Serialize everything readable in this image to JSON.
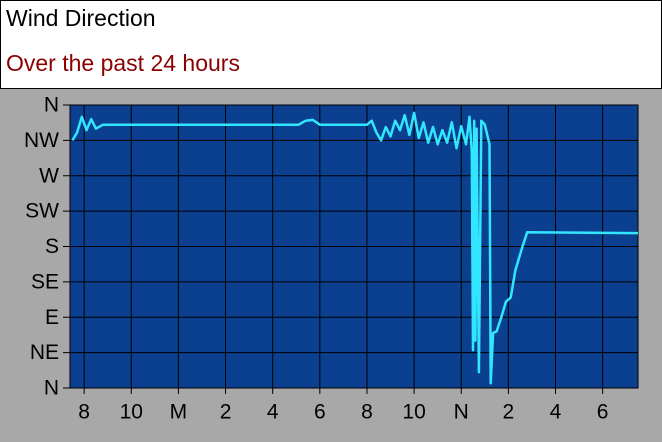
{
  "chart_data": {
    "type": "line",
    "title": "Wind Direction",
    "subtitle": "Over the past 24 hours",
    "color": "#33e6ff",
    "plot_color": "#0b3f8f",
    "grid": true,
    "xlim": [
      19.4,
      43.5
    ],
    "xticks": [
      {
        "value": 20,
        "label": "8"
      },
      {
        "value": 22,
        "label": "10"
      },
      {
        "value": 24,
        "label": "M"
      },
      {
        "value": 26,
        "label": "2"
      },
      {
        "value": 28,
        "label": "4"
      },
      {
        "value": 30,
        "label": "6"
      },
      {
        "value": 32,
        "label": "8"
      },
      {
        "value": 34,
        "label": "10"
      },
      {
        "value": 36,
        "label": "N"
      },
      {
        "value": 38,
        "label": "2"
      },
      {
        "value": 40,
        "label": "4"
      },
      {
        "value": 42,
        "label": "6"
      }
    ],
    "ylim": [
      0,
      360
    ],
    "yticks": [
      {
        "value": 0,
        "label": "N"
      },
      {
        "value": 45,
        "label": "NE"
      },
      {
        "value": 90,
        "label": "E"
      },
      {
        "value": 135,
        "label": "SE"
      },
      {
        "value": 180,
        "label": "S"
      },
      {
        "value": 225,
        "label": "SW"
      },
      {
        "value": 270,
        "label": "W"
      },
      {
        "value": 315,
        "label": "NW"
      },
      {
        "value": 360,
        "label": "N"
      }
    ],
    "x": [
      19.5,
      19.7,
      19.9,
      20.1,
      20.3,
      20.5,
      20.8,
      29.1,
      29.4,
      29.7,
      30.0,
      32.0,
      32.2,
      32.4,
      32.6,
      32.8,
      33.0,
      33.2,
      33.4,
      33.6,
      33.8,
      34.0,
      34.2,
      34.4,
      34.6,
      34.8,
      35.0,
      35.2,
      35.4,
      35.6,
      35.8,
      36.0,
      36.2,
      36.35,
      36.45,
      36.5,
      36.55,
      36.6,
      36.65,
      36.75,
      36.85,
      37.0,
      37.2,
      37.25,
      37.35,
      37.5,
      37.7,
      37.9,
      38.1,
      38.3,
      38.6,
      38.8,
      43.5
    ],
    "values": [
      315,
      325,
      345,
      328,
      342,
      330,
      335,
      335,
      340,
      341,
      335,
      335,
      340,
      325,
      315,
      332,
      320,
      340,
      328,
      347,
      322,
      350,
      318,
      338,
      312,
      332,
      310,
      328,
      312,
      338,
      305,
      333,
      310,
      345,
      300,
      48,
      340,
      60,
      330,
      20,
      340,
      335,
      310,
      6,
      70,
      72,
      90,
      110,
      115,
      150,
      180,
      198,
      197
    ]
  }
}
